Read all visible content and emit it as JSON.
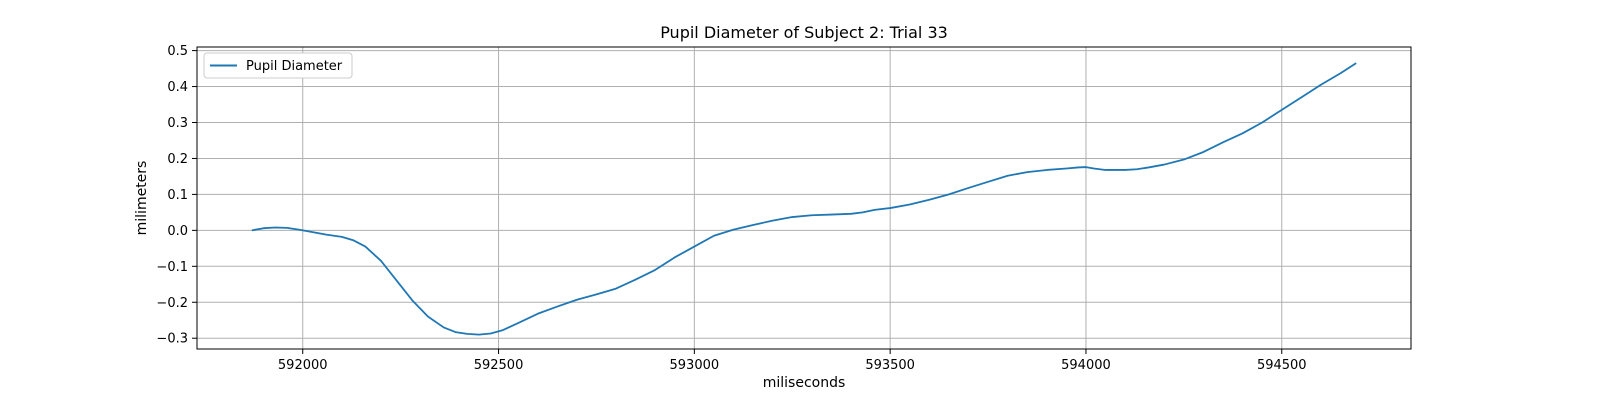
{
  "chart_data": {
    "type": "line",
    "title": "Pupil Diameter of Subject 2: Trial 33",
    "xlabel": "miliseconds",
    "ylabel": "milimeters",
    "xlim": [
      591730,
      594830
    ],
    "ylim": [
      -0.33,
      0.51
    ],
    "xticks": [
      592000,
      592500,
      593000,
      593500,
      594000,
      594500
    ],
    "yticks": [
      -0.3,
      -0.2,
      -0.1,
      0.0,
      0.1,
      0.2,
      0.3,
      0.4,
      0.5
    ],
    "xtick_labels": [
      "592000",
      "592500",
      "593000",
      "593500",
      "594000",
      "594500"
    ],
    "ytick_labels": [
      "−0.3",
      "−0.2",
      "−0.1",
      "0.0",
      "0.1",
      "0.2",
      "0.3",
      "0.4",
      "0.5"
    ],
    "grid": true,
    "legend_position": "top-left",
    "series": [
      {
        "name": "Pupil Diameter",
        "color": "#1f77b4",
        "x": [
          591870,
          591900,
          591930,
          591960,
          591990,
          592020,
          592060,
          592100,
          592130,
          592160,
          592200,
          592240,
          592280,
          592320,
          592360,
          592390,
          592420,
          592450,
          592480,
          592510,
          592550,
          592600,
          592650,
          592700,
          592750,
          592800,
          592850,
          592900,
          592950,
          593000,
          593050,
          593100,
          593150,
          593200,
          593250,
          593300,
          593350,
          593400,
          593430,
          593460,
          593500,
          593550,
          593600,
          593650,
          593700,
          593750,
          593800,
          593850,
          593900,
          593950,
          593980,
          594000,
          594020,
          594050,
          594100,
          594130,
          594160,
          594200,
          594250,
          594300,
          594350,
          594400,
          594450,
          594500,
          594550,
          594600,
          594650,
          594690
        ],
        "y": [
          0.0,
          0.006,
          0.008,
          0.007,
          0.002,
          -0.004,
          -0.012,
          -0.018,
          -0.028,
          -0.045,
          -0.085,
          -0.14,
          -0.195,
          -0.24,
          -0.27,
          -0.283,
          -0.288,
          -0.29,
          -0.287,
          -0.278,
          -0.258,
          -0.232,
          -0.212,
          -0.193,
          -0.178,
          -0.162,
          -0.137,
          -0.11,
          -0.075,
          -0.045,
          -0.015,
          0.002,
          0.015,
          0.027,
          0.037,
          0.042,
          0.044,
          0.046,
          0.05,
          0.057,
          0.062,
          0.072,
          0.085,
          0.1,
          0.118,
          0.135,
          0.152,
          0.162,
          0.168,
          0.172,
          0.175,
          0.176,
          0.172,
          0.168,
          0.168,
          0.17,
          0.175,
          0.183,
          0.197,
          0.218,
          0.245,
          0.27,
          0.3,
          0.335,
          0.37,
          0.405,
          0.437,
          0.465
        ]
      }
    ]
  }
}
